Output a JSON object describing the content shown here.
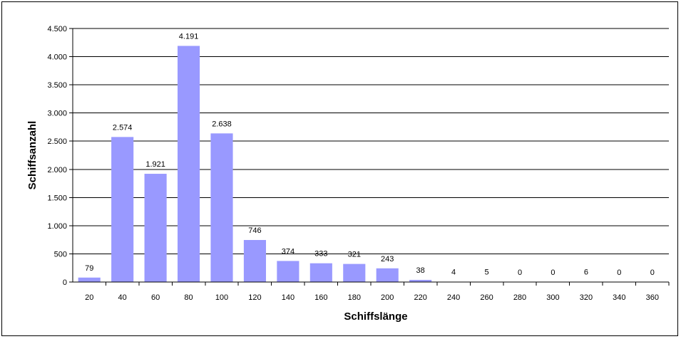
{
  "chart_data": {
    "type": "bar",
    "title": "",
    "xlabel": "Schiffslänge",
    "ylabel": "Schiffsanzahl",
    "categories": [
      "20",
      "40",
      "60",
      "80",
      "100",
      "120",
      "140",
      "160",
      "180",
      "200",
      "220",
      "240",
      "260",
      "280",
      "300",
      "320",
      "340",
      "360"
    ],
    "values": [
      79,
      2574,
      1921,
      4191,
      2638,
      746,
      374,
      333,
      321,
      243,
      38,
      4,
      5,
      0,
      0,
      6,
      0,
      0
    ],
    "value_labels": [
      "79",
      "2.574",
      "1.921",
      "4.191",
      "2.638",
      "746",
      "374",
      "333",
      "321",
      "243",
      "38",
      "4",
      "5",
      "0",
      "0",
      "6",
      "0",
      "0"
    ],
    "yticks": [
      0,
      500,
      1000,
      1500,
      2000,
      2500,
      3000,
      3500,
      4000,
      4500
    ],
    "ytick_labels": [
      "0",
      "500",
      "1.000",
      "1.500",
      "2.000",
      "2.500",
      "3.000",
      "3.500",
      "4.000",
      "4.500"
    ],
    "ylim": [
      0,
      4500
    ],
    "grid": true,
    "legend": "none",
    "bar_color": "#9999ff"
  }
}
